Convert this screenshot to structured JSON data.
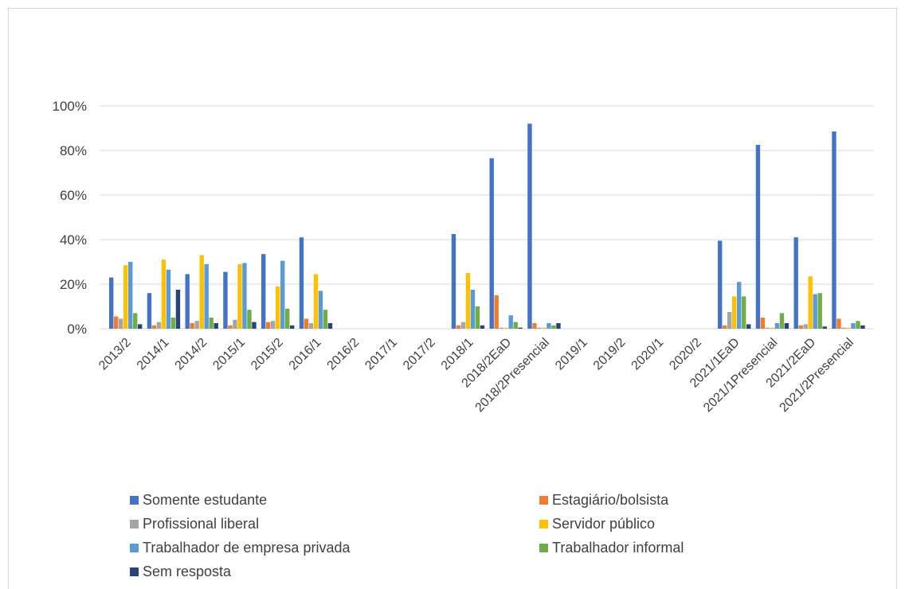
{
  "chart_data": {
    "type": "bar",
    "title": "",
    "xlabel": "",
    "ylabel": "",
    "ylim": [
      0,
      100
    ],
    "yticks": [
      "0%",
      "20%",
      "40%",
      "60%",
      "80%",
      "100%"
    ],
    "grid": true,
    "legend_position": "bottom",
    "categories": [
      "2013/2",
      "2014/1",
      "2014/2",
      "2015/1",
      "2015/2",
      "2016/1",
      "2016/2",
      "2017/1",
      "2017/2",
      "2018/1",
      "2018/2EaD",
      "2018/2Presencial",
      "2019/1",
      "2019/2",
      "2020/1",
      "2020/2",
      "2021/1EaD",
      "2021/1Presencial",
      "2021/2EaD",
      "2021/2Presencial"
    ],
    "series": [
      {
        "name": "Somente estudante",
        "color": "#4472C4",
        "values": [
          23,
          16,
          24.5,
          25.5,
          33.5,
          41,
          0,
          0,
          0,
          42.5,
          76.5,
          92,
          0,
          0,
          0,
          0,
          39.5,
          82.5,
          41,
          88.5
        ]
      },
      {
        "name": "Estagiário/bolsista",
        "color": "#ED7D31",
        "values": [
          5.5,
          1.5,
          2.5,
          1.5,
          3,
          4.5,
          0,
          0,
          0,
          1.5,
          15,
          2.5,
          0,
          0,
          0,
          0,
          1.5,
          5,
          1.5,
          4.5
        ]
      },
      {
        "name": "Profissional liberal",
        "color": "#A5A5A5",
        "values": [
          4.5,
          3,
          3.5,
          4,
          3.5,
          2.5,
          0,
          0,
          0,
          3,
          0.5,
          0.5,
          0,
          0,
          0,
          0,
          7.5,
          0.5,
          2,
          0.5
        ]
      },
      {
        "name": "Servidor público",
        "color": "#FFC000",
        "values": [
          28.5,
          31,
          33,
          29,
          19,
          24.5,
          0,
          0,
          0,
          25,
          0.5,
          0.5,
          0,
          0,
          0,
          0,
          14.5,
          0.5,
          23.5,
          0.5
        ]
      },
      {
        "name": "Trabalhador de empresa privada",
        "color": "#5B9BD5",
        "values": [
          30,
          26.5,
          29,
          29.5,
          30.5,
          17,
          0,
          0,
          0,
          17.5,
          6,
          2.5,
          0,
          0,
          0,
          0,
          21,
          2.5,
          15.5,
          2.5
        ]
      },
      {
        "name": "Trabalhador informal",
        "color": "#70AD47",
        "values": [
          7,
          5,
          5,
          8.5,
          9,
          8.5,
          0,
          0,
          0,
          10,
          3,
          1.5,
          0,
          0,
          0,
          0,
          14.5,
          7,
          16,
          3.5
        ]
      },
      {
        "name": "Sem resposta",
        "color": "#264478",
        "values": [
          2,
          17.5,
          2.5,
          3,
          1.5,
          2.5,
          0,
          0,
          0,
          1.5,
          0.5,
          2.5,
          0,
          0,
          0,
          0,
          2,
          2.5,
          1,
          1.5
        ]
      }
    ]
  }
}
